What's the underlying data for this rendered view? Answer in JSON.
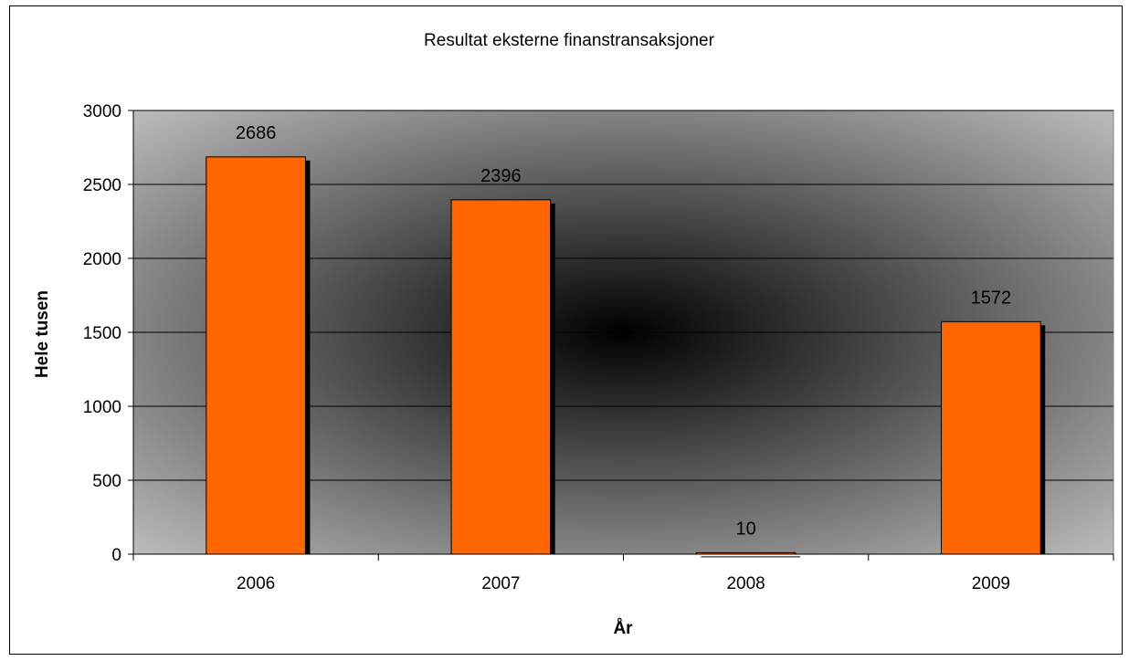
{
  "chart_data": {
    "type": "bar",
    "title": "Resultat eksterne finanstransaksjoner",
    "xlabel": "År",
    "ylabel": "Hele tusen",
    "categories": [
      "2006",
      "2007",
      "2008",
      "2009"
    ],
    "values": [
      2686,
      2396,
      10,
      1572
    ],
    "data_labels": [
      "2686",
      "2396",
      "10",
      "1572"
    ],
    "ylim": [
      0,
      3000
    ],
    "yticks": [
      0,
      500,
      1000,
      1500,
      2000,
      2500,
      3000
    ],
    "grid": true,
    "legend": "none",
    "colors": {
      "bar": "#ff6600",
      "bar_shadow": "#000000",
      "plot_background_center": "#000000",
      "plot_background_edge": "#c8c8c8",
      "gridline": "#000000"
    }
  }
}
